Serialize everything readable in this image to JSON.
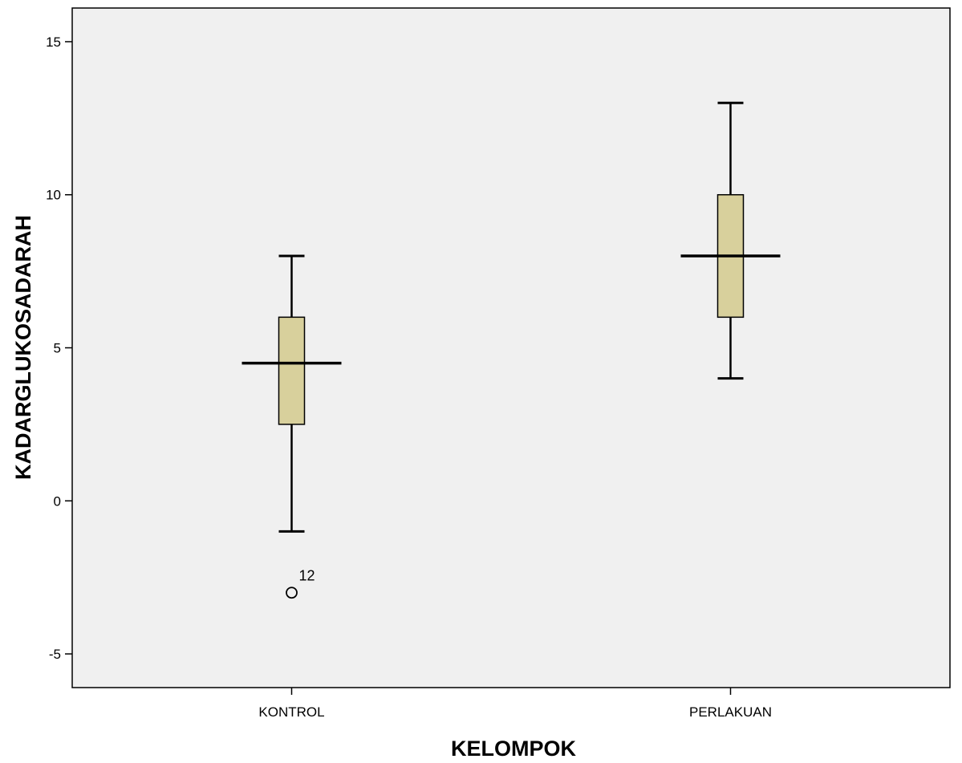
{
  "chart_data": {
    "type": "boxplot",
    "xlabel": "KELOMPOK",
    "ylabel": "KADARGLUKOSADARAH",
    "ylim": [
      -6.1,
      16.1
    ],
    "yticks": [
      -5,
      0,
      5,
      10,
      15
    ],
    "ytick_labels": [
      "-5",
      "0",
      "5",
      "10",
      "15"
    ],
    "grid": false,
    "legend": "none",
    "categories": [
      "KONTROL",
      "PERLAKUAN"
    ],
    "boxes": [
      {
        "category": "KONTROL",
        "whisker_low": -1,
        "q1": 2.5,
        "median": 4.5,
        "q3": 6,
        "whisker_high": 8,
        "outliers": [
          {
            "value": -3,
            "label": "12"
          }
        ]
      },
      {
        "category": "PERLAKUAN",
        "whisker_low": 4,
        "q1": 6,
        "median": 8,
        "q3": 10,
        "whisker_high": 13,
        "outliers": []
      }
    ],
    "colors": {
      "plot_background": "#f0f0f0",
      "box_fill": "#d8d09c",
      "box_stroke": "#000000",
      "frame": "#000000"
    }
  }
}
